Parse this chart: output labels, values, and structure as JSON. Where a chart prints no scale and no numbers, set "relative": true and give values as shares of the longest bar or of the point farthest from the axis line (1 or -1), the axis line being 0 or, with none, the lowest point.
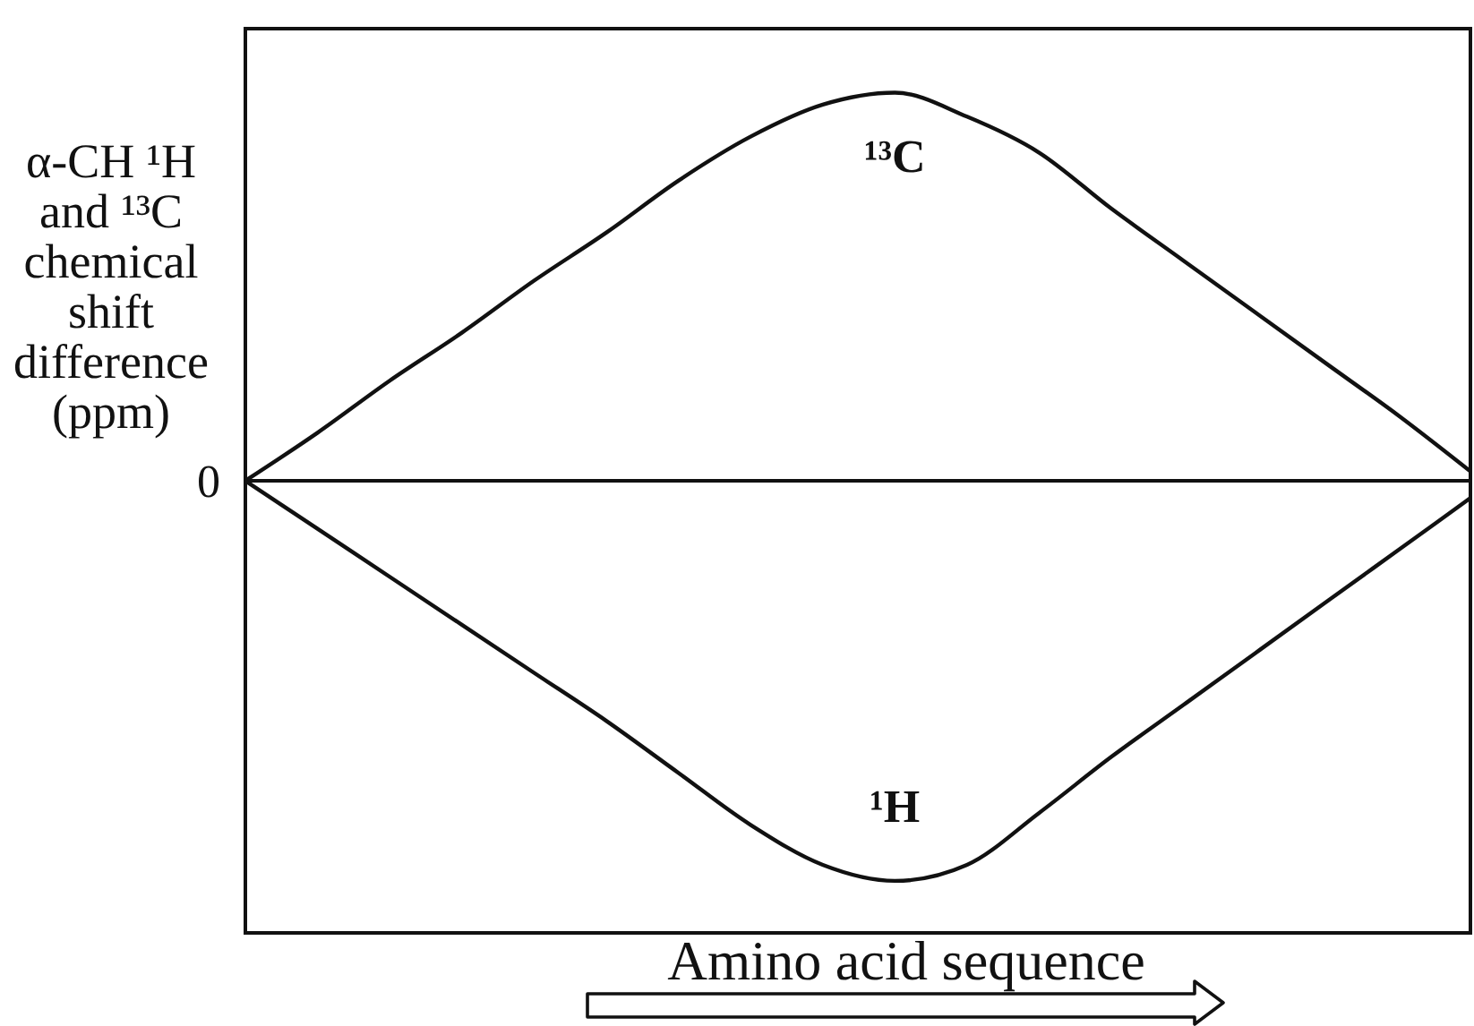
{
  "chart_data": {
    "type": "line",
    "relative": true,
    "xlabel": "Amino acid sequence",
    "ylabel": "α-CH ¹H and ¹³C chemical shift difference (ppm)",
    "categories": [
      null,
      null,
      null,
      null,
      null,
      null,
      null,
      null,
      null,
      null,
      null,
      null,
      null,
      null,
      null,
      null,
      null,
      null
    ],
    "series": [
      {
        "name": "¹³C",
        "color": "#111111",
        "values": [
          0,
          0.12,
          0.25,
          0.37,
          0.5,
          0.62,
          0.75,
          0.86,
          0.94,
          0.97,
          0.91,
          0.82,
          0.68,
          0.55,
          0.42,
          0.29,
          0.16,
          0.02
        ]
      },
      {
        "name": "¹H",
        "color": "#111111",
        "values": [
          0,
          -0.12,
          -0.24,
          -0.36,
          -0.48,
          -0.6,
          -0.73,
          -0.86,
          -0.96,
          -1,
          -0.96,
          -0.83,
          -0.69,
          -0.56,
          -0.43,
          -0.3,
          -0.17,
          -0.04
        ]
      }
    ],
    "ref_lines": [
      {
        "axis": "y",
        "value": 0,
        "label": "0",
        "color": "#111111"
      }
    ]
  }
}
